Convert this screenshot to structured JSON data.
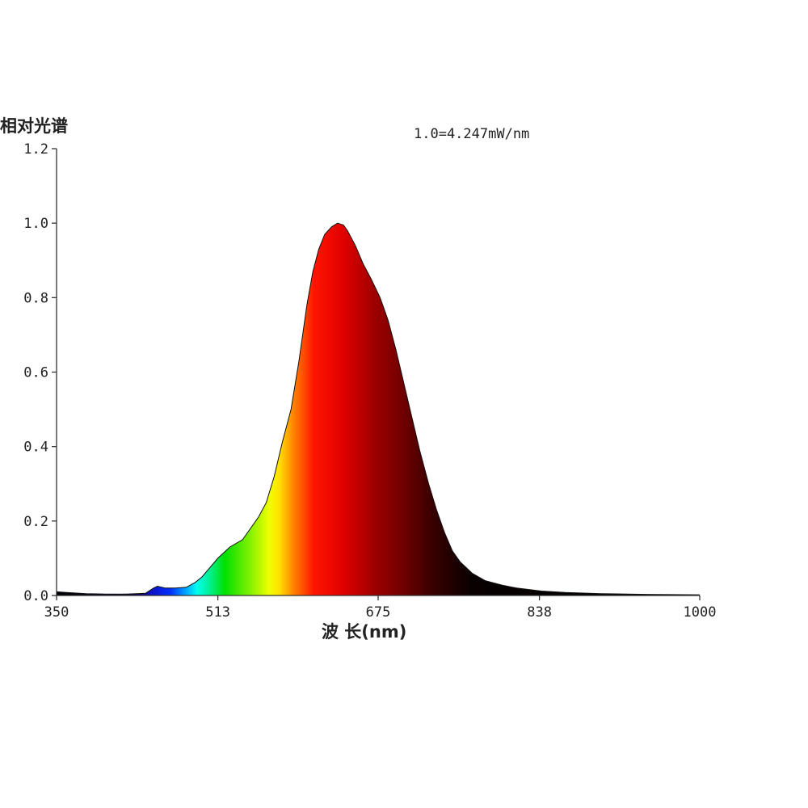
{
  "chart_data": {
    "type": "area",
    "ylabel": "相对光谱",
    "xlabel": "波 长(nm)",
    "annotation": "1.0=4.247mW/nm",
    "xlim": [
      350,
      1000
    ],
    "ylim": [
      0,
      1.2
    ],
    "x_ticks": [
      "350",
      "513",
      "675",
      "838",
      "1000"
    ],
    "x_tick_values": [
      350,
      513,
      675,
      838,
      1000
    ],
    "y_ticks": [
      "0.0",
      "0.2",
      "0.4",
      "0.6",
      "0.8",
      "1.0",
      "1.2"
    ],
    "y_tick_values": [
      0,
      0.2,
      0.4,
      0.6,
      0.8,
      1.0,
      1.2
    ],
    "grid": false,
    "fill": "spectral-color-gradient",
    "series": [
      {
        "x": [
          350,
          360,
          380,
          400,
          420,
          440,
          448,
          452,
          460,
          470,
          481,
          490,
          497,
          505,
          513,
          525,
          538,
          546,
          554,
          562,
          570,
          578,
          587,
          595,
          603,
          609,
          615,
          621,
          628,
          634,
          640,
          644,
          652,
          660,
          668,
          677,
          685,
          693,
          701,
          709,
          717,
          726,
          734,
          742,
          750,
          758,
          770,
          783,
          800,
          815,
          840,
          864,
          900,
          946,
          1000
        ],
        "y": [
          0.01,
          0.008,
          0.005,
          0.004,
          0.004,
          0.006,
          0.02,
          0.025,
          0.02,
          0.02,
          0.022,
          0.035,
          0.05,
          0.075,
          0.1,
          0.13,
          0.15,
          0.18,
          0.21,
          0.25,
          0.32,
          0.41,
          0.5,
          0.63,
          0.78,
          0.87,
          0.93,
          0.97,
          0.99,
          1.0,
          0.995,
          0.98,
          0.94,
          0.89,
          0.85,
          0.8,
          0.74,
          0.66,
          0.57,
          0.48,
          0.39,
          0.3,
          0.23,
          0.17,
          0.12,
          0.09,
          0.06,
          0.04,
          0.028,
          0.02,
          0.012,
          0.008,
          0.005,
          0.003,
          0.002
        ]
      }
    ]
  }
}
